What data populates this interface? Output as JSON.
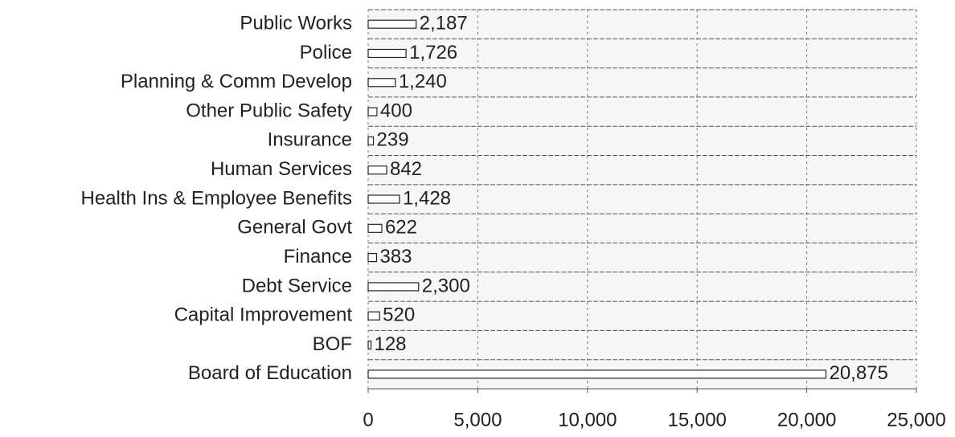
{
  "chart_data": {
    "type": "barh",
    "categories": [
      "Public Works",
      "Police",
      "Planning & Comm Develop",
      "Other Public Safety",
      "Insurance",
      "Human Services",
      "Health Ins & Employee Benefits",
      "General Govt",
      "Finance",
      "Debt Service",
      "Capital Improvement",
      "BOF",
      "Board of Education"
    ],
    "values": [
      2187,
      1726,
      1240,
      400,
      239,
      842,
      1428,
      622,
      383,
      2300,
      520,
      128,
      20875
    ],
    "value_labels": [
      "2,187",
      "1,726",
      "1,240",
      "400",
      "239",
      "842",
      "1,428",
      "622",
      "383",
      "2,300",
      "520",
      "128",
      "20,875"
    ],
    "color": "#ffffff",
    "xlim": [
      0,
      25000
    ],
    "xticks": [
      0,
      {
        "value": 5000,
        "label": "5,000"
      },
      {
        "value": 10000,
        "label": "10,000"
      },
      {
        "value": 15000,
        "label": "15,000"
      },
      {
        "value": 20000,
        "label": "20,000"
      },
      {
        "value": 25000,
        "label": "25,000"
      }
    ],
    "grid": true
  }
}
